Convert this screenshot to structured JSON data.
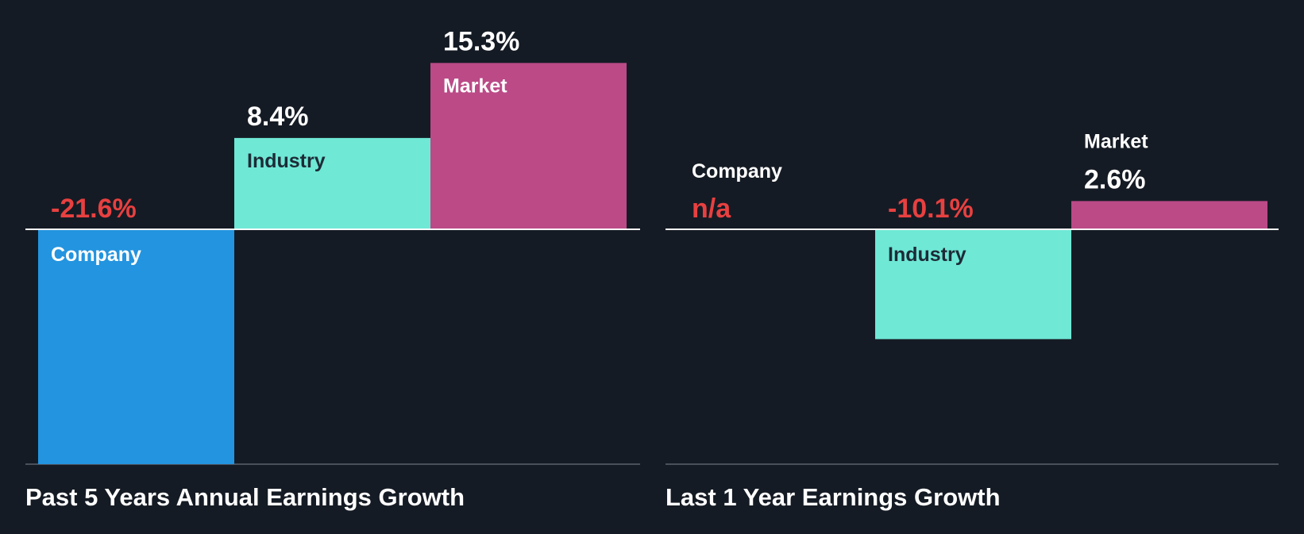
{
  "colors": {
    "background": "#151b24",
    "company": "#2394df",
    "industry": "#6fe8d6",
    "market": "#bb4a87",
    "negative_text": "#e84040",
    "positive_text": "#ffffff",
    "bar_label_dark": "#1d2b36",
    "bar_label_light": "#ffffff",
    "baseline": "#ffffff",
    "bottom_rule": "#4a5059"
  },
  "chart_data": [
    {
      "type": "bar",
      "title": "Past 5 Years Annual Earnings Growth",
      "categories": [
        "Company",
        "Industry",
        "Market"
      ],
      "values": [
        -21.6,
        8.4,
        15.3
      ],
      "value_labels": [
        "-21.6%",
        "8.4%",
        "15.3%"
      ],
      "ylim": [
        -21.6,
        15.3
      ],
      "xlabel": "",
      "ylabel": ""
    },
    {
      "type": "bar",
      "title": "Last 1 Year Earnings Growth",
      "categories": [
        "Company",
        "Industry",
        "Market"
      ],
      "values": [
        null,
        -10.1,
        2.6
      ],
      "value_labels": [
        "n/a",
        "-10.1%",
        "2.6%"
      ],
      "ylim": [
        -21.6,
        15.3
      ],
      "xlabel": "",
      "ylabel": ""
    }
  ]
}
